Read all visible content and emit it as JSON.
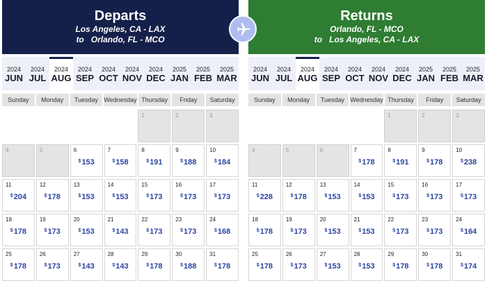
{
  "departs": {
    "title": "Departs",
    "line1": "Los Angeles, CA - LAX",
    "to_word": "to",
    "line2": "Orlando, FL - MCO"
  },
  "returns": {
    "title": "Returns",
    "line1": "Orlando, FL - MCO",
    "to_word": "to",
    "line2": "Los Angeles, CA - LAX"
  },
  "plane_icon": "airplane-icon",
  "months": [
    {
      "year": "2024",
      "month": "JUN"
    },
    {
      "year": "2024",
      "month": "JUL"
    },
    {
      "year": "2024",
      "month": "AUG"
    },
    {
      "year": "2024",
      "month": "SEP"
    },
    {
      "year": "2024",
      "month": "OCT"
    },
    {
      "year": "2024",
      "month": "NOV"
    },
    {
      "year": "2024",
      "month": "DEC"
    },
    {
      "year": "2025",
      "month": "JAN"
    },
    {
      "year": "2025",
      "month": "FEB"
    },
    {
      "year": "2025",
      "month": "MAR"
    }
  ],
  "selected_month_index": 2,
  "weekdays": [
    "Sunday",
    "Monday",
    "Tuesday",
    "Wednesday",
    "Thursday",
    "Friday",
    "Saturday"
  ],
  "currency_symbol": "$",
  "unavailable_days_departs": [
    1,
    2,
    3,
    4,
    5
  ],
  "unavailable_days_returns": [
    1,
    2,
    3,
    4,
    5,
    6
  ],
  "departs_prices": {
    "6": "153",
    "7": "158",
    "8": "191",
    "9": "188",
    "10": "184",
    "11": "204",
    "12": "178",
    "13": "153",
    "14": "153",
    "15": "173",
    "16": "173",
    "17": "173",
    "18": "178",
    "19": "173",
    "20": "153",
    "21": "143",
    "22": "173",
    "23": "173",
    "24": "168",
    "25": "178",
    "26": "173",
    "27": "143",
    "28": "143",
    "29": "178",
    "30": "188",
    "31": "178"
  },
  "returns_prices": {
    "7": "178",
    "8": "191",
    "9": "178",
    "10": "238",
    "11": "228",
    "12": "178",
    "13": "153",
    "14": "153",
    "15": "173",
    "16": "173",
    "17": "173",
    "18": "178",
    "19": "173",
    "20": "153",
    "21": "153",
    "22": "173",
    "23": "173",
    "24": "164",
    "25": "178",
    "26": "173",
    "27": "153",
    "28": "153",
    "29": "178",
    "30": "178",
    "31": "174"
  },
  "colors": {
    "departs_header": "#15204a",
    "returns_header": "#2e7d32",
    "price": "#2b45a1",
    "month_bar": "#eef0f8"
  }
}
